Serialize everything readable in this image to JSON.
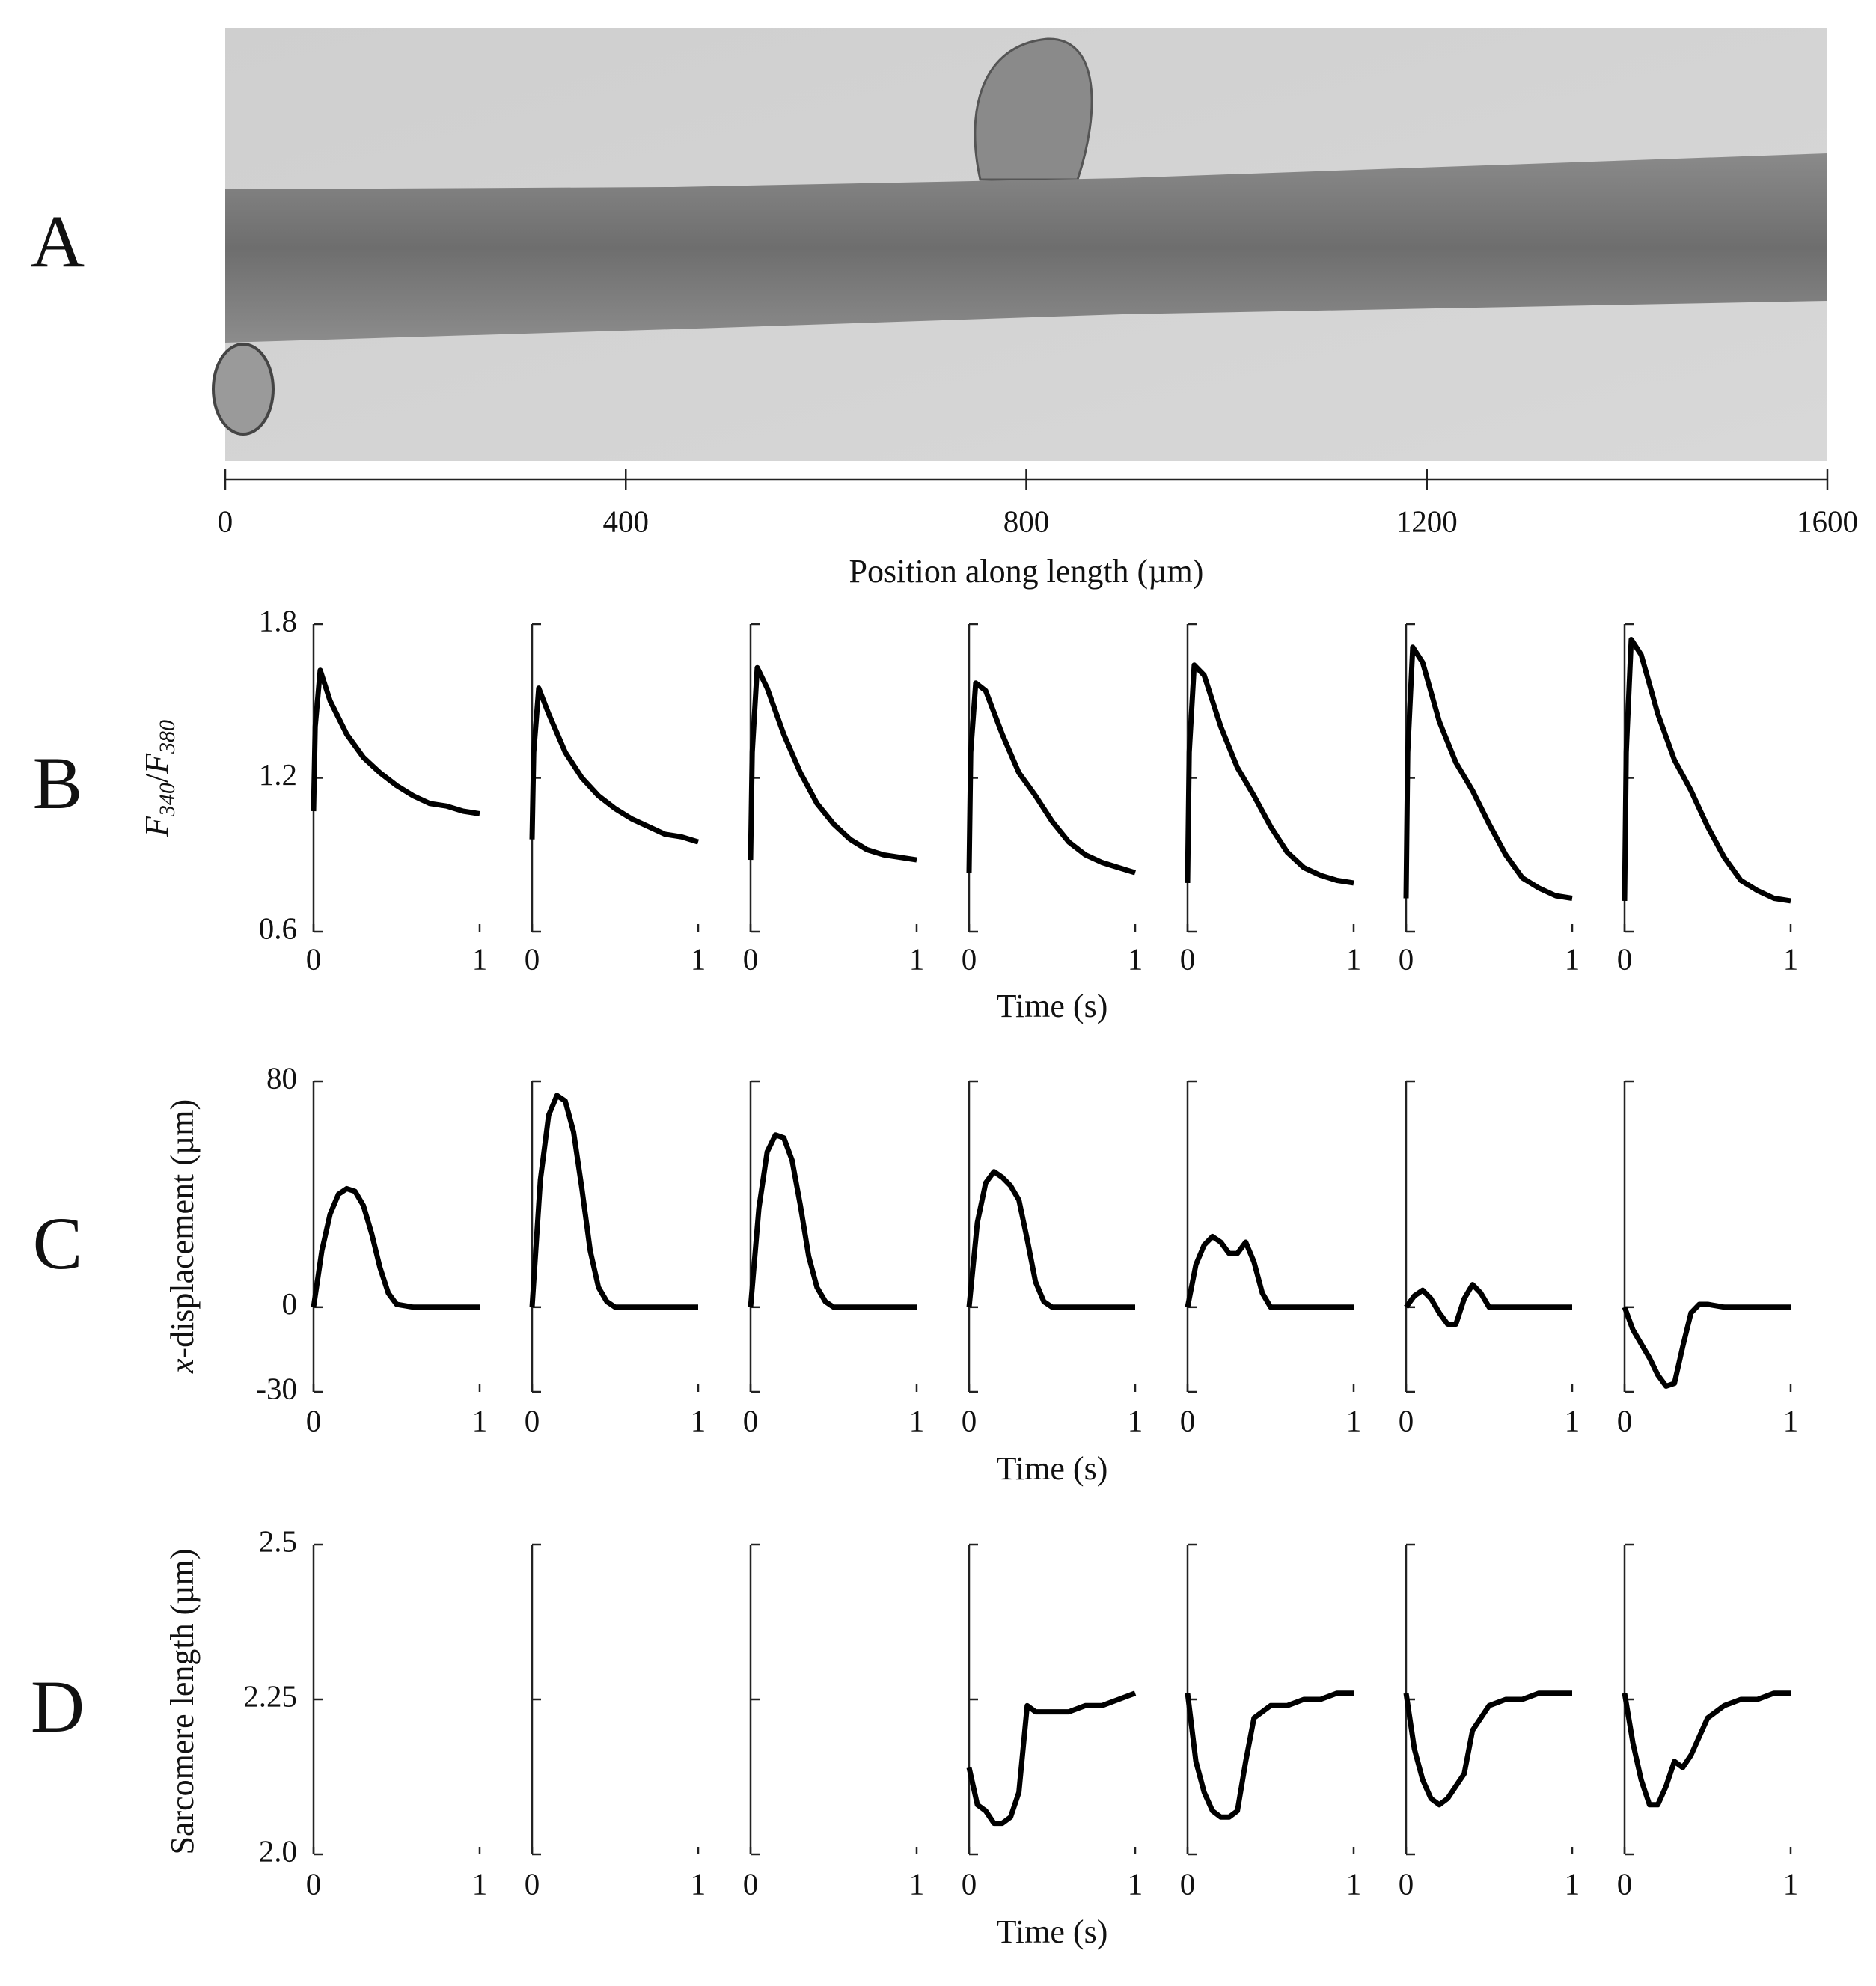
{
  "chart_data": [
    {
      "type": "axis",
      "panel_label": "A",
      "xlabel": "Position along length (µm)",
      "xlim": [
        0,
        1600
      ],
      "xticks": [
        0,
        400,
        800,
        1200,
        1600
      ]
    },
    {
      "type": "line",
      "panel_label": "B",
      "xlabel": "Time (s)",
      "ylabel": [
        {
          "text": "F",
          "italic": true
        },
        {
          "text": "340",
          "italic": true,
          "sub": true
        },
        {
          "text": "/"
        },
        {
          "text": "F",
          "italic": true
        },
        {
          "text": "380",
          "italic": true,
          "sub": true
        }
      ],
      "xlim": [
        0,
        1
      ],
      "xticks": [
        0,
        1
      ],
      "ylim": [
        0.6,
        1.8
      ],
      "yticks": [
        0.6,
        1.2,
        1.8
      ],
      "color": "#000000",
      "x": [
        0,
        0.01,
        0.04,
        0.1,
        0.2,
        0.3,
        0.4,
        0.5,
        0.6,
        0.7,
        0.8,
        0.9,
        1.0
      ],
      "series": [
        {
          "values": [
            1.07,
            1.4,
            1.62,
            1.5,
            1.37,
            1.28,
            1.22,
            1.17,
            1.13,
            1.1,
            1.09,
            1.07,
            1.06
          ]
        },
        {
          "values": [
            0.96,
            1.3,
            1.55,
            1.45,
            1.3,
            1.2,
            1.13,
            1.08,
            1.04,
            1.01,
            0.98,
            0.97,
            0.95
          ]
        },
        {
          "values": [
            0.88,
            1.3,
            1.63,
            1.55,
            1.37,
            1.22,
            1.1,
            1.02,
            0.96,
            0.92,
            0.9,
            0.89,
            0.88
          ]
        },
        {
          "values": [
            0.83,
            1.3,
            1.57,
            1.54,
            1.37,
            1.22,
            1.13,
            1.03,
            0.95,
            0.9,
            0.87,
            0.85,
            0.83
          ]
        },
        {
          "values": [
            0.79,
            1.3,
            1.64,
            1.6,
            1.4,
            1.24,
            1.13,
            1.01,
            0.91,
            0.85,
            0.82,
            0.8,
            0.79
          ]
        },
        {
          "values": [
            0.73,
            1.3,
            1.71,
            1.65,
            1.42,
            1.26,
            1.15,
            1.02,
            0.9,
            0.81,
            0.77,
            0.74,
            0.73
          ]
        },
        {
          "values": [
            0.72,
            1.3,
            1.74,
            1.68,
            1.45,
            1.27,
            1.15,
            1.01,
            0.89,
            0.8,
            0.76,
            0.73,
            0.72
          ]
        }
      ]
    },
    {
      "type": "line",
      "panel_label": "C",
      "xlabel": "Time (s)",
      "ylabel": [
        {
          "text": "x",
          "italic": true
        },
        {
          "text": "-displacement (µm)"
        }
      ],
      "xlim": [
        0,
        1
      ],
      "xticks": [
        0,
        1
      ],
      "ylim": [
        -30,
        80
      ],
      "yticks": [
        -30,
        0,
        80
      ],
      "color": "#000000",
      "x": [
        0,
        0.05,
        0.1,
        0.15,
        0.2,
        0.25,
        0.3,
        0.35,
        0.4,
        0.45,
        0.5,
        0.6,
        0.7,
        0.8,
        1.0
      ],
      "series": [
        {
          "values": [
            0,
            20,
            33,
            40,
            42,
            41,
            36,
            26,
            14,
            5,
            1,
            0,
            0,
            0,
            0
          ]
        },
        {
          "values": [
            0,
            45,
            68,
            75,
            73,
            62,
            42,
            20,
            7,
            2,
            0,
            0,
            0,
            0,
            0
          ]
        },
        {
          "values": [
            0,
            35,
            55,
            61,
            60,
            52,
            36,
            18,
            7,
            2,
            0,
            0,
            0,
            0,
            0
          ]
        },
        {
          "values": [
            0,
            30,
            44,
            48,
            46,
            43,
            38,
            24,
            9,
            2,
            0,
            0,
            0,
            0,
            0
          ]
        },
        {
          "values": [
            0,
            15,
            22,
            25,
            23,
            19,
            19,
            23,
            16,
            5,
            0,
            0,
            0,
            0,
            0
          ]
        },
        {
          "values": [
            0,
            4,
            6,
            3,
            -2,
            -6,
            -6,
            3,
            8,
            5,
            0,
            0,
            0,
            0,
            0
          ]
        },
        {
          "values": [
            0,
            -8,
            -13,
            -18,
            -24,
            -28,
            -27,
            -14,
            -2,
            1,
            1,
            0,
            0,
            0,
            0
          ]
        }
      ]
    },
    {
      "type": "line",
      "panel_label": "D",
      "xlabel": "Time (s)",
      "ylabel": [
        {
          "text": "Sarcomere length (µm)"
        }
      ],
      "xlim": [
        0,
        1
      ],
      "xticks": [
        0,
        1
      ],
      "ylim": [
        2.0,
        2.5
      ],
      "yticks": [
        {
          "value": 2.0,
          "label": "2.0"
        },
        2.25,
        2.5
      ],
      "color": "#000000",
      "x": [
        0,
        0.05,
        0.1,
        0.15,
        0.2,
        0.25,
        0.3,
        0.35,
        0.4,
        0.5,
        0.6,
        0.7,
        0.8,
        0.9,
        1.0
      ],
      "series": [
        {
          "values": [
            null,
            null,
            null,
            null,
            null,
            null,
            null,
            null,
            null,
            null,
            null,
            null,
            null,
            null,
            null
          ]
        },
        {
          "values": [
            null,
            null,
            null,
            null,
            null,
            null,
            null,
            null,
            null,
            null,
            null,
            null,
            null,
            null,
            null
          ]
        },
        {
          "values": [
            null,
            null,
            null,
            null,
            null,
            null,
            null,
            null,
            null,
            null,
            null,
            null,
            null,
            null,
            null
          ]
        },
        {
          "values": [
            2.14,
            2.08,
            2.07,
            2.05,
            2.05,
            2.06,
            2.1,
            2.24,
            2.23,
            2.23,
            2.23,
            2.24,
            2.24,
            2.25,
            2.26
          ]
        },
        {
          "values": [
            2.26,
            2.15,
            2.1,
            2.07,
            2.06,
            2.06,
            2.07,
            2.15,
            2.22,
            2.24,
            2.24,
            2.25,
            2.25,
            2.26,
            2.26
          ]
        },
        {
          "values": [
            2.26,
            2.17,
            2.12,
            2.09,
            2.08,
            2.09,
            2.11,
            2.13,
            2.2,
            2.24,
            2.25,
            2.25,
            2.26,
            2.26,
            2.26
          ]
        },
        {
          "values": [
            2.26,
            2.18,
            2.12,
            2.08,
            2.08,
            2.11,
            2.15,
            2.14,
            2.16,
            2.22,
            2.24,
            2.25,
            2.25,
            2.26,
            2.26
          ]
        }
      ]
    }
  ]
}
